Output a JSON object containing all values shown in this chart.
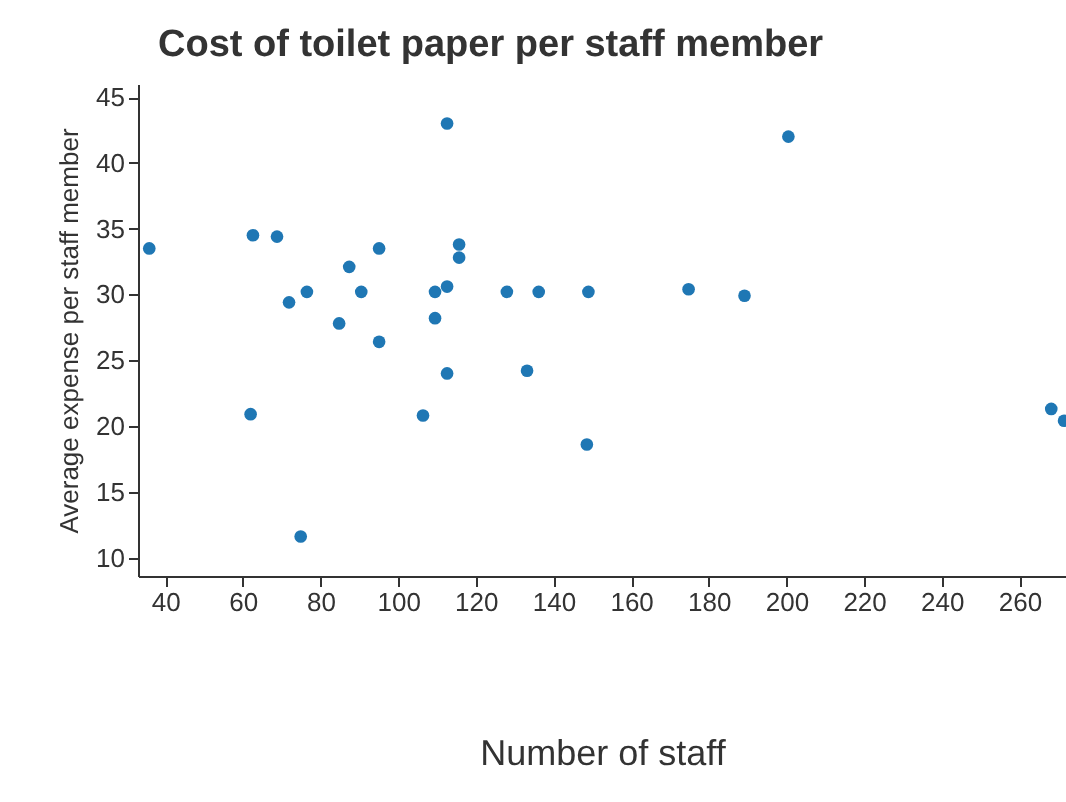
{
  "chart_data": {
    "type": "scatter",
    "title": "Cost of toilet paper per staff member",
    "xlabel": "Number of staff",
    "ylabel": "Average expense per staff member",
    "x": [
      35.9,
      62.6,
      68.8,
      71.9,
      76.5,
      84.8,
      87.4,
      90.5,
      95.1,
      95.1,
      62,
      74.9,
      106.4,
      109.5,
      109.5,
      112.6,
      112.6,
      112.6,
      115.7,
      115.7,
      128,
      133.2,
      136.2,
      148.6,
      149,
      174.8,
      189.2,
      200.5,
      268.2,
      271.5
    ],
    "values": [
      33.5,
      34.5,
      34.4,
      29.4,
      30.2,
      27.8,
      32.1,
      30.2,
      33.5,
      26.4,
      20.9,
      11.6,
      20.8,
      28.2,
      30.2,
      30.6,
      43,
      24,
      33.8,
      32.8,
      30.2,
      24.2,
      30.2,
      18.6,
      30.2,
      30.4,
      29.9,
      42,
      21.3,
      20.4
    ],
    "color": "#1f77b4",
    "marker": "circle",
    "xlim": [
      33,
      272
    ],
    "ylim": [
      8.6,
      46
    ],
    "xticks": [
      40,
      60,
      80,
      100,
      120,
      140,
      160,
      180,
      200,
      220,
      240,
      260
    ],
    "yticks": [
      10,
      15,
      20,
      25,
      30,
      35,
      40,
      45
    ],
    "grid": false
  }
}
